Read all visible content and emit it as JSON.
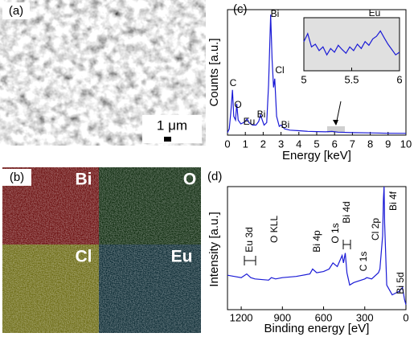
{
  "panels": {
    "a": {
      "label": "(a)",
      "scale_bar": "1 μm"
    },
    "b": {
      "label": "(b)",
      "maps": [
        "Bi",
        "O",
        "Cl",
        "Eu"
      ]
    },
    "c": {
      "label": "(c)"
    },
    "d": {
      "label": "(d)"
    }
  },
  "chart_data": [
    {
      "type": "line",
      "xlabel": "Energy [keV]",
      "ylabel": "Counts [a.u.]",
      "color": "#1a1ad6",
      "x": [
        0,
        0.1,
        0.2,
        0.28,
        0.35,
        0.45,
        0.52,
        0.6,
        0.75,
        0.9,
        1.0,
        1.1,
        1.2,
        1.4,
        1.6,
        1.75,
        1.85,
        1.95,
        2.05,
        2.2,
        2.3,
        2.42,
        2.5,
        2.58,
        2.65,
        2.75,
        2.9,
        3.0,
        3.2,
        3.5,
        4,
        4.5,
        5,
        5.5,
        5.85,
        6.2,
        7,
        8,
        9,
        10
      ],
      "values": [
        2,
        5,
        20,
        36,
        15,
        12,
        25,
        12,
        9,
        10,
        11,
        13,
        10,
        8,
        8,
        11,
        16,
        12,
        8,
        10,
        40,
        96,
        60,
        38,
        45,
        15,
        7,
        8,
        5,
        4,
        3.5,
        3,
        2.8,
        2.6,
        3,
        2.4,
        2,
        1.8,
        1.5,
        1.4
      ],
      "xlim": [
        0,
        10
      ],
      "ylim": [
        0,
        100
      ],
      "xticks": [
        0,
        1,
        2,
        3,
        4,
        5,
        6,
        7,
        8,
        9,
        10
      ],
      "annotations": [
        "C",
        "O",
        "Eu",
        "Bi",
        "Bi",
        "Cl",
        "Bi"
      ]
    },
    {
      "type": "line",
      "color": "#1a1ad6",
      "x": [
        5,
        5.04,
        5.08,
        5.12,
        5.16,
        5.2,
        5.24,
        5.28,
        5.32,
        5.36,
        5.4,
        5.44,
        5.48,
        5.52,
        5.56,
        5.6,
        5.64,
        5.68,
        5.72,
        5.76,
        5.8,
        5.84,
        5.88,
        5.92,
        5.96,
        6
      ],
      "values": [
        55,
        70,
        45,
        50,
        38,
        45,
        30,
        42,
        35,
        48,
        40,
        33,
        45,
        38,
        50,
        42,
        55,
        48,
        60,
        65,
        75,
        62,
        50,
        40,
        30,
        35
      ],
      "xlim": [
        5,
        6
      ],
      "ylim": [
        0,
        100
      ],
      "xticks": [
        5,
        5.5,
        6
      ],
      "annotations": [
        "Eu"
      ]
    },
    {
      "type": "line",
      "xlabel": "Binding energy [eV]",
      "ylabel": "Intensity [a.u.]",
      "color": "#1a1ad6",
      "x": [
        1300,
        1250,
        1200,
        1160,
        1130,
        1100,
        1000,
        980,
        950,
        900,
        800,
        700,
        680,
        650,
        600,
        560,
        532,
        500,
        465,
        455,
        442,
        430,
        410,
        380,
        300,
        285,
        250,
        200,
        190,
        170,
        164,
        159,
        155,
        140,
        100,
        50,
        25,
        10,
        0
      ],
      "values": [
        28,
        27,
        26,
        29,
        26,
        25,
        24,
        26,
        25,
        26,
        27,
        29,
        33,
        30,
        31,
        33,
        38,
        35,
        44,
        38,
        46,
        30,
        20,
        22,
        25,
        26,
        25,
        30,
        33,
        60,
        90,
        100,
        70,
        20,
        12,
        15,
        18,
        8,
        4
      ],
      "xlim": [
        1300,
        0
      ],
      "ylim": [
        0,
        100
      ],
      "xticks": [
        1200,
        900,
        600,
        300,
        0
      ],
      "annotations": [
        "Eu 3d",
        "O KLL",
        "Bi 4p",
        "O 1s",
        "Bi 4d",
        "C 1s",
        "Cl 2p",
        "Bi 4f",
        "Bi 5d"
      ]
    }
  ]
}
